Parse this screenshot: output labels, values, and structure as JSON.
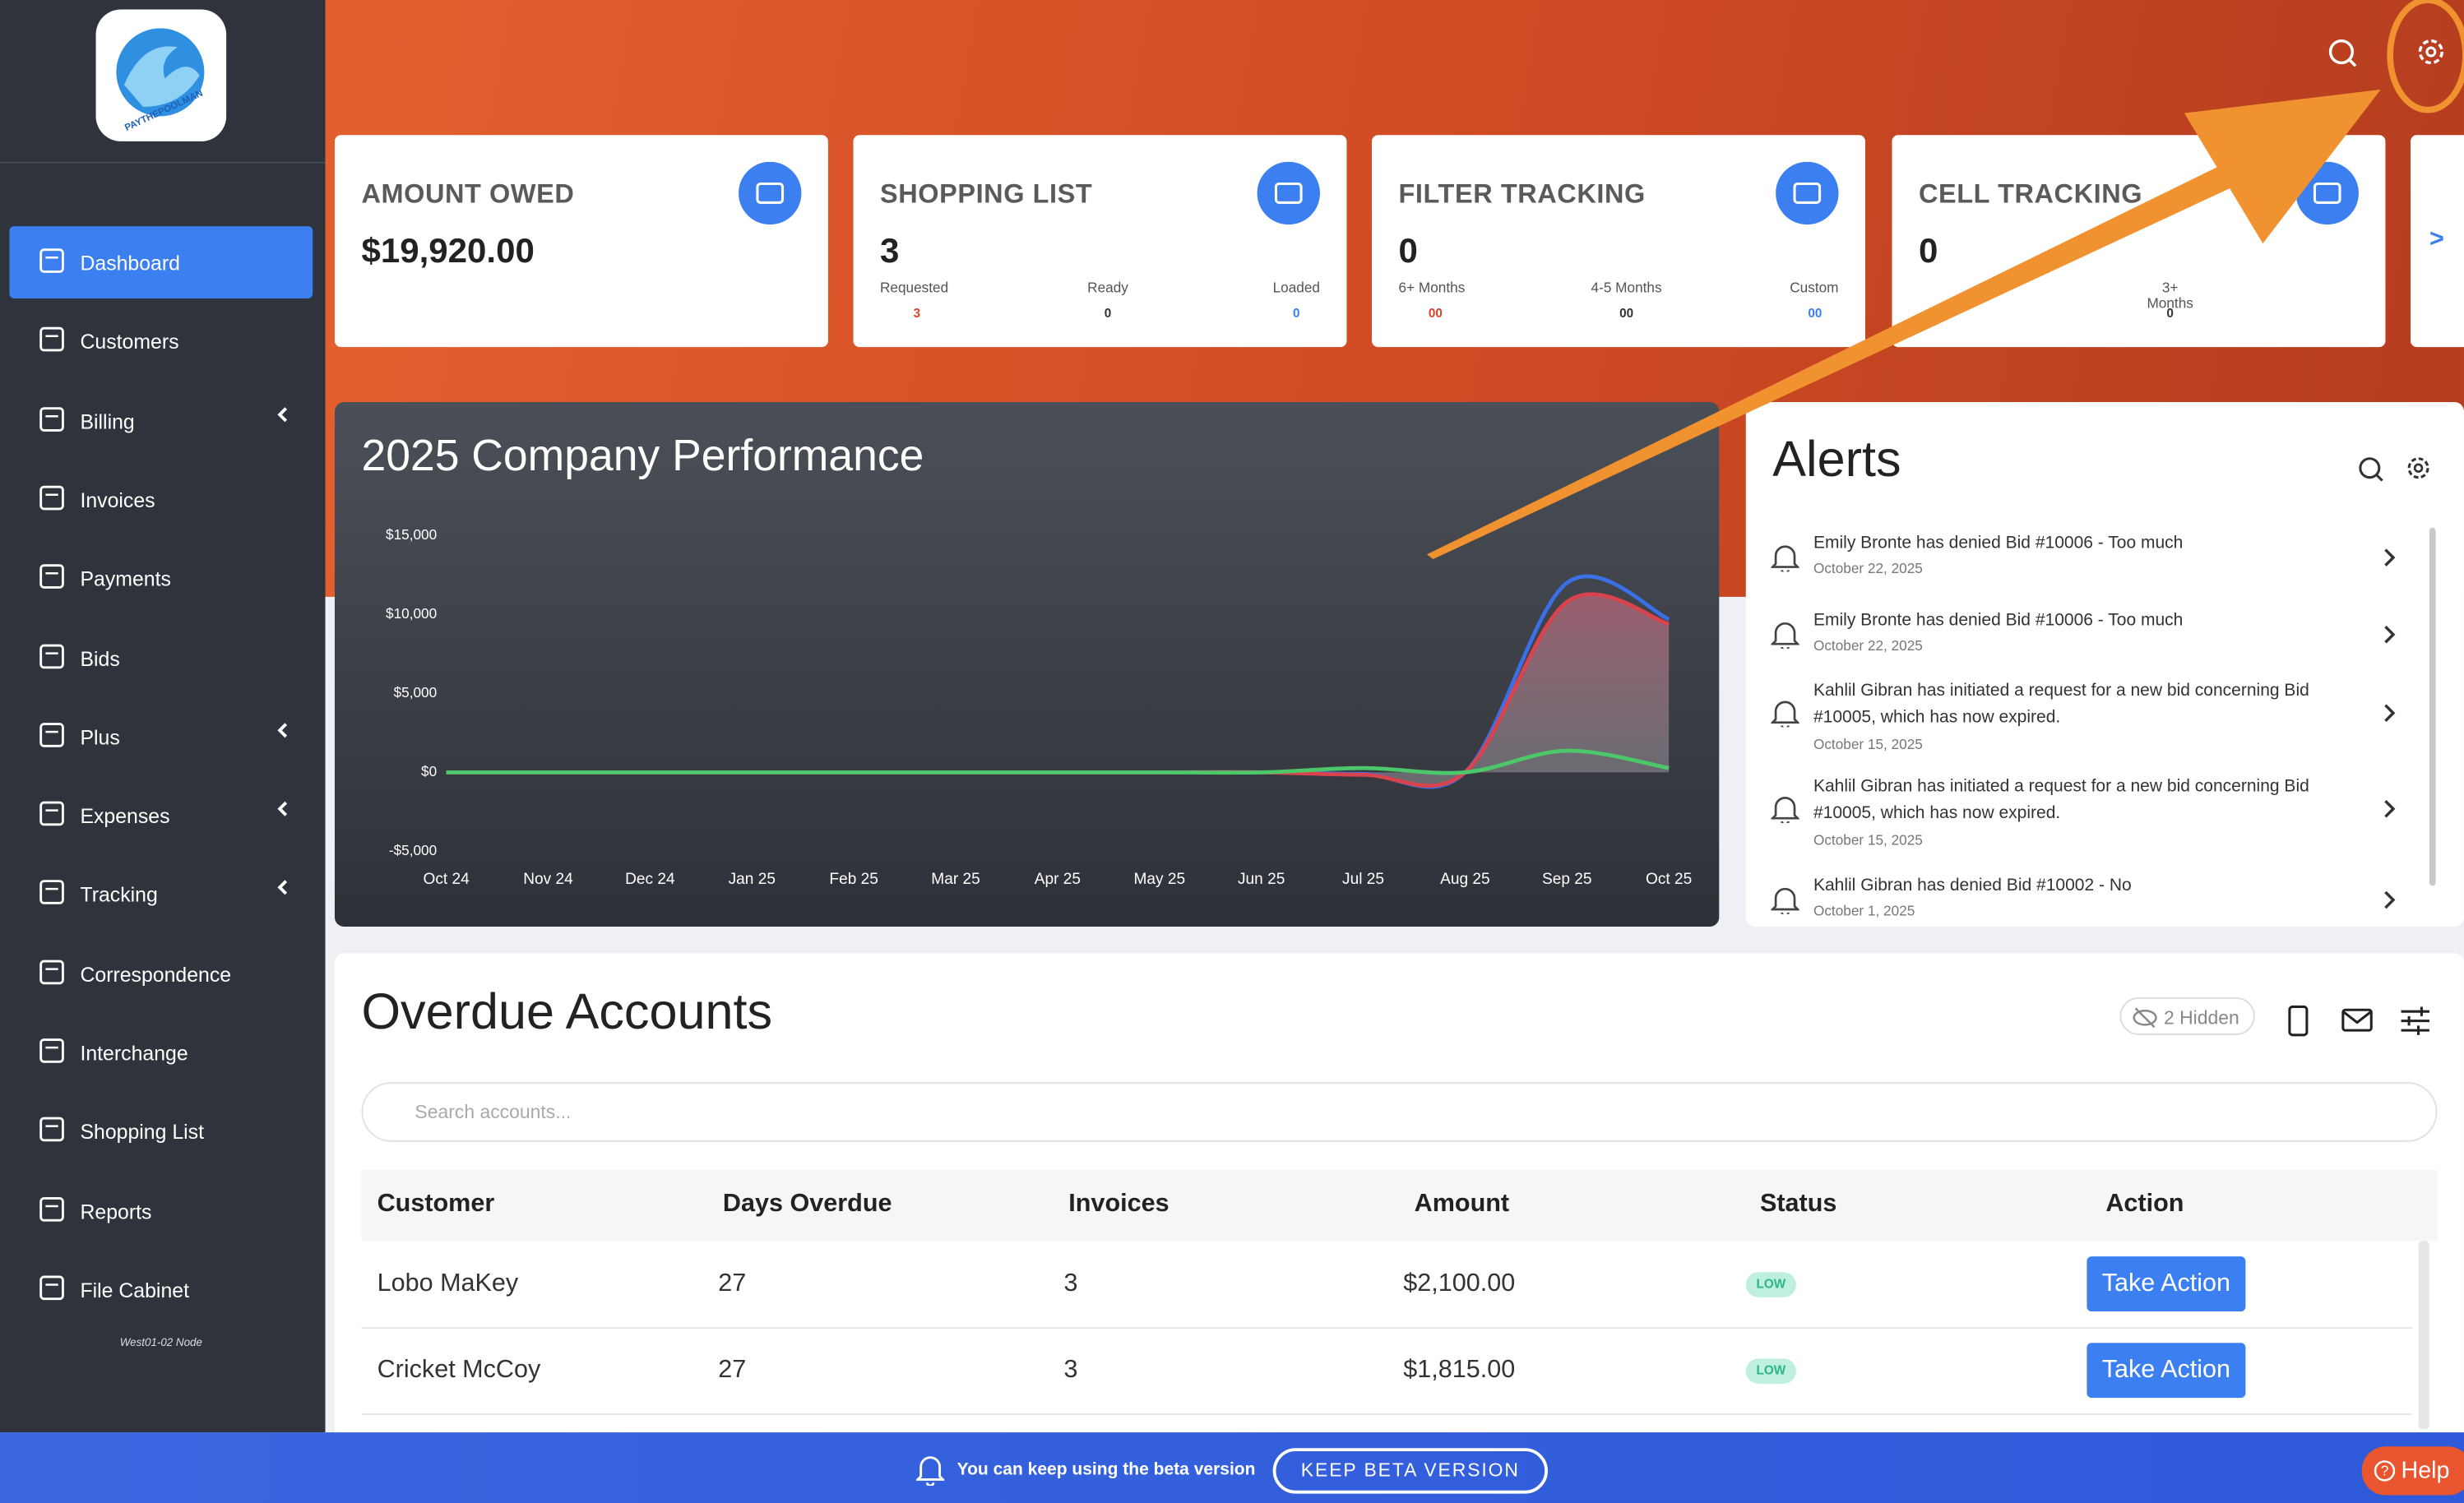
{
  "sidebar": {
    "logo_text": "PAYTHEPOOLMAN",
    "items": [
      {
        "label": "Dashboard",
        "active": true
      },
      {
        "label": "Customers"
      },
      {
        "label": "Billing",
        "expandable": true
      },
      {
        "label": "Invoices"
      },
      {
        "label": "Payments"
      },
      {
        "label": "Bids"
      },
      {
        "label": "Plus",
        "expandable": true
      },
      {
        "label": "Expenses",
        "expandable": true
      },
      {
        "label": "Tracking",
        "expandable": true
      },
      {
        "label": "Correspondence"
      },
      {
        "label": "Interchange"
      },
      {
        "label": "Shopping List"
      },
      {
        "label": "Reports"
      },
      {
        "label": "File Cabinet"
      }
    ],
    "node": "West01-02 Node"
  },
  "cards": [
    {
      "title": "AMOUNT OWED",
      "value": "$19,920.00"
    },
    {
      "title": "SHOPPING LIST",
      "value": "3",
      "stats": [
        {
          "label": "Requested",
          "value": "3",
          "color": "#d9432b"
        },
        {
          "label": "Ready",
          "value": "0",
          "color": "#333333"
        },
        {
          "label": "Loaded",
          "value": "0",
          "color": "#3b7ff0"
        }
      ]
    },
    {
      "title": "FILTER TRACKING",
      "value": "0",
      "stats": [
        {
          "label": "6+ Months",
          "value": "00",
          "color": "#d9432b"
        },
        {
          "label": "4-5 Months",
          "value": "00",
          "color": "#333333"
        },
        {
          "label": "Custom",
          "value": "00",
          "color": "#3b7ff0"
        }
      ]
    },
    {
      "title": "CELL TRACKING",
      "value": "0",
      "stats": [
        {
          "label": "3+ Months",
          "value": "0",
          "color": "#333333"
        }
      ]
    }
  ],
  "cards_next": ">",
  "chart_data": {
    "type": "line",
    "title": "2025 Company Performance",
    "categories": [
      "Oct 24",
      "Nov 24",
      "Dec 24",
      "Jan 25",
      "Feb 25",
      "Mar 25",
      "Apr 25",
      "May 25",
      "Jun 25",
      "Jul 25",
      "Aug 25",
      "Sep 25",
      "Oct 25"
    ],
    "series": [
      {
        "color": "#3b6fe6",
        "values": [
          0,
          0,
          0,
          0,
          0,
          0,
          0,
          0,
          0,
          -100,
          0,
          12000,
          9700
        ]
      },
      {
        "color": "#d9434d",
        "values": [
          0,
          0,
          0,
          0,
          0,
          0,
          0,
          0,
          0,
          -150,
          0,
          10800,
          9400
        ]
      },
      {
        "color": "#4cc76a",
        "values": [
          0,
          0,
          0,
          0,
          0,
          0,
          0,
          0,
          0,
          270,
          0,
          1370,
          270
        ]
      }
    ],
    "ylim": [
      -5000,
      15000
    ],
    "yticks": [
      {
        "value": -5000,
        "label": "-$5,000"
      },
      {
        "value": 0,
        "label": "$0"
      },
      {
        "value": 5000,
        "label": "$5,000"
      },
      {
        "value": 10000,
        "label": "$10,000"
      },
      {
        "value": 15000,
        "label": "$15,000"
      }
    ],
    "grid": false
  },
  "alerts": {
    "title": "Alerts",
    "items": [
      {
        "text": "Emily Bronte has denied Bid #10006 - Too much",
        "date": "October 22, 2025"
      },
      {
        "text": "Emily Bronte has denied Bid #10006 - Too much",
        "date": "October 22, 2025"
      },
      {
        "text": "Kahlil Gibran has initiated a request for a new bid concerning Bid #10005, which has now expired.",
        "date": "October 15, 2025"
      },
      {
        "text": "Kahlil Gibran has initiated a request for a new bid concerning Bid #10005, which has now expired.",
        "date": "October 15, 2025"
      },
      {
        "text": "Kahlil Gibran has denied Bid #10002 - No",
        "date": "October 1, 2025"
      }
    ]
  },
  "overdue": {
    "title": "Overdue Accounts",
    "hidden": "2 Hidden",
    "search_placeholder": "Search accounts...",
    "columns": [
      "Customer",
      "Days Overdue",
      "Invoices",
      "Amount",
      "Status",
      "Action"
    ],
    "rows": [
      [
        "Lobo MaKey",
        "27",
        "3",
        "$2,100.00",
        "LOW",
        "Take Action"
      ],
      [
        "Cricket McCoy",
        "27",
        "3",
        "$1,815.00",
        "LOW",
        "Take Action"
      ]
    ]
  },
  "banner": {
    "message": "You can keep using the beta version",
    "button": "KEEP BETA VERSION",
    "help": "Help"
  }
}
